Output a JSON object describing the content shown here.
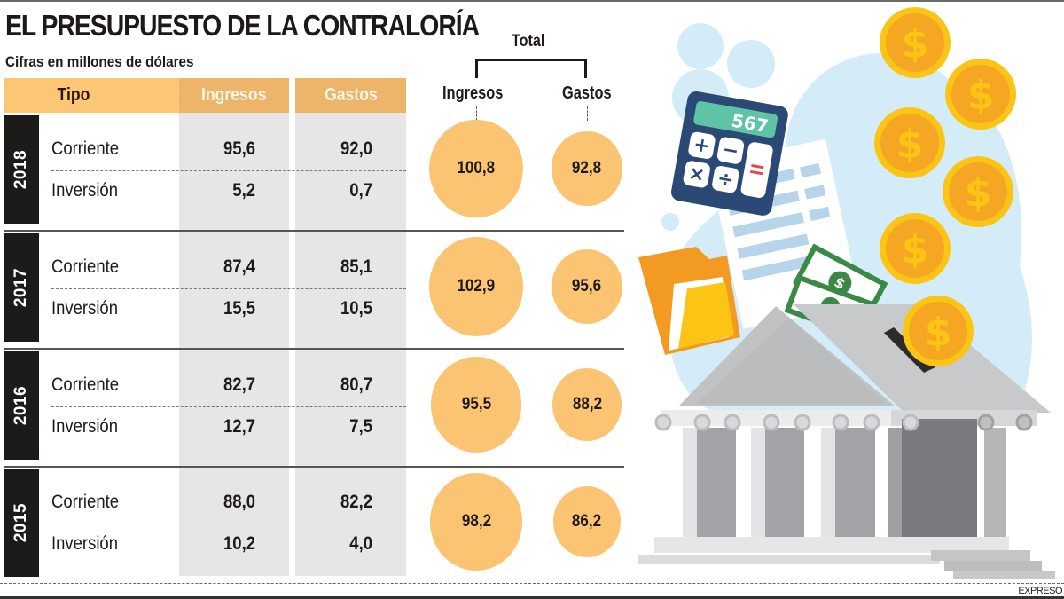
{
  "title": "EL PRESUPUESTO DE LA CONTRALORÍA",
  "subtitle": "Cifras en millones de dólares",
  "credit": "EXPRESO",
  "table": {
    "headers": {
      "tipo": "Tipo",
      "ingresos": "Ingresos",
      "gastos": "Gastos"
    },
    "total_label": "Total",
    "total_headers": {
      "ingresos": "Ingresos",
      "gastos": "Gastos"
    }
  },
  "colors": {
    "header_tipo": "#fbc774",
    "header_values": "#ecb56a",
    "column_bg": "#e6e6e7",
    "bubble": "#fbc473",
    "year_tab": "#1d1b1a"
  },
  "illustration": {
    "calculator_display": "567",
    "icons": [
      "calculator-icon",
      "document-icon",
      "folder-icon",
      "banknote-icon",
      "coin-icon",
      "bank-building-icon"
    ]
  },
  "chart_data": {
    "type": "table",
    "title": "EL PRESUPUESTO DE LA CONTRALORÍA",
    "subtitle": "Cifras en millones de dólares",
    "columns": [
      "Tipo",
      "Ingresos",
      "Gastos"
    ],
    "years": [
      {
        "year": "2018",
        "rows": [
          {
            "tipo": "Corriente",
            "ingresos": "95,6",
            "gastos": "92,0"
          },
          {
            "tipo": "Inversión",
            "ingresos": "5,2",
            "gastos": "0,7"
          }
        ],
        "total": {
          "ingresos": "100,8",
          "gastos": "92,8"
        }
      },
      {
        "year": "2017",
        "rows": [
          {
            "tipo": "Corriente",
            "ingresos": "87,4",
            "gastos": "85,1"
          },
          {
            "tipo": "Inversión",
            "ingresos": "15,5",
            "gastos": "10,5"
          }
        ],
        "total": {
          "ingresos": "102,9",
          "gastos": "95,6"
        }
      },
      {
        "year": "2016",
        "rows": [
          {
            "tipo": "Corriente",
            "ingresos": "82,7",
            "gastos": "80,7"
          },
          {
            "tipo": "Inversión",
            "ingresos": "12,7",
            "gastos": "7,5"
          }
        ],
        "total": {
          "ingresos": "95,5",
          "gastos": "88,2"
        }
      },
      {
        "year": "2015",
        "rows": [
          {
            "tipo": "Corriente",
            "ingresos": "88,0",
            "gastos": "82,2"
          },
          {
            "tipo": "Inversión",
            "ingresos": "10,2",
            "gastos": "4,0"
          }
        ],
        "total": {
          "ingresos": "98,2",
          "gastos": "86,2"
        }
      }
    ]
  }
}
